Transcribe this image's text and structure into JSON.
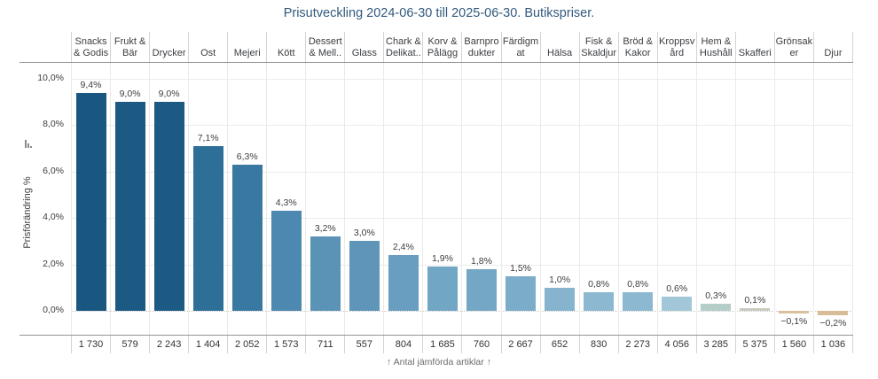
{
  "title": "Prisutveckling 2024-06-30 till 2025-06-30. Butikspriser.",
  "y_axis": {
    "label": "Prisförändring %",
    "sort_icon": "sort-descending-bars-icon",
    "ticks": [
      "10,0%",
      "8,0%",
      "6,0%",
      "4,0%",
      "2,0%",
      "0,0%"
    ],
    "tick_values": [
      10,
      8,
      6,
      4,
      2,
      0
    ]
  },
  "footer": {
    "caption": "↑ Antal jämförda artiklar ↑"
  },
  "colors": {
    "title": "#31597d",
    "text": "#3a3d41",
    "muted": "#6b6b6b",
    "grid_line_h": "#ebebeb",
    "grid_line_v": "#eaeaea",
    "separator": "#d4d4d4",
    "frame": "#949494",
    "zero_line": "#c8c8c8"
  },
  "chart_data": {
    "type": "bar",
    "title": "Prisutveckling 2024-06-30 till 2025-06-30. Butikspriser.",
    "xlabel": "",
    "ylabel": "Prisförändring %",
    "ylim": [
      -1.05,
      10.7
    ],
    "grid": true,
    "legend": "none",
    "categories": [
      "Snacks & Godis",
      "Frukt & Bär",
      "Drycker",
      "Ost",
      "Mejeri",
      "Kött",
      "Dessert & Mell..",
      "Glass",
      "Chark & Delikat..",
      "Korv & Pålägg",
      "Barnprodukter",
      "Färdigmat",
      "Hälsa",
      "Fisk & Skaldjur",
      "Bröd & Kakor",
      "Kroppsvård",
      "Hem & Hushåll",
      "Skafferi",
      "Grönsaker",
      "Djur"
    ],
    "category_display_lines": [
      [
        "Snacks",
        "& Godis"
      ],
      [
        "Frukt &",
        "Bär"
      ],
      [
        "Drycker"
      ],
      [
        "Ost"
      ],
      [
        "Mejeri"
      ],
      [
        "Kött"
      ],
      [
        "Dessert",
        "& Mell.."
      ],
      [
        "Glass"
      ],
      [
        "Chark &",
        "Delikat.."
      ],
      [
        "Korv &",
        "Pålägg"
      ],
      [
        "Barnpro",
        "dukter"
      ],
      [
        "Färdigm",
        "at"
      ],
      [
        "Hälsa"
      ],
      [
        "Fisk &",
        "Skaldjur"
      ],
      [
        "Bröd &",
        "Kakor"
      ],
      [
        "Kroppsv",
        "ård"
      ],
      [
        "Hem &",
        "Hushåll"
      ],
      [
        "Skafferi"
      ],
      [
        "Grönsak",
        "er"
      ],
      [
        "Djur"
      ]
    ],
    "series": [
      {
        "name": "Prisförändring %",
        "unit": "%",
        "values": [
          9.4,
          9.0,
          9.0,
          7.1,
          6.3,
          4.3,
          3.2,
          3.0,
          2.4,
          1.9,
          1.8,
          1.5,
          1.0,
          0.8,
          0.8,
          0.6,
          0.3,
          0.1,
          -0.1,
          -0.2
        ],
        "labels": [
          "9,4%",
          "9,0%",
          "9,0%",
          "7,1%",
          "6,3%",
          "4,3%",
          "3,2%",
          "3,0%",
          "2,4%",
          "1,9%",
          "1,8%",
          "1,5%",
          "1,0%",
          "0,8%",
          "0,8%",
          "0,6%",
          "0,3%",
          "0,1%",
          "−0,1%",
          "−0,2%"
        ]
      },
      {
        "name": "Antal jämförda artiklar",
        "values": [
          1730,
          579,
          2243,
          1404,
          2052,
          1573,
          711,
          557,
          804,
          1685,
          760,
          2667,
          652,
          830,
          2273,
          4056,
          3285,
          5375,
          1560,
          1036
        ],
        "labels": [
          "1 730",
          "579",
          "2 243",
          "1 404",
          "2 052",
          "1 573",
          "711",
          "557",
          "804",
          "1 685",
          "760",
          "2 667",
          "652",
          "830",
          "2 273",
          "4 056",
          "3 285",
          "5 375",
          "1 560",
          "1 036"
        ]
      }
    ],
    "bar_colors": [
      "#195680",
      "#1d5a83",
      "#1d5a83",
      "#2e6f98",
      "#3878a1",
      "#4c88af",
      "#5b93b7",
      "#5e95b8",
      "#699ec0",
      "#72a6c5",
      "#74a7c6",
      "#7bacca",
      "#86b4cf",
      "#8cb8d1",
      "#8cb8d1",
      "#a2c7d8",
      "#b5cdc8",
      "#c8ccc0",
      "#d9c09e",
      "#d8bc97"
    ]
  }
}
